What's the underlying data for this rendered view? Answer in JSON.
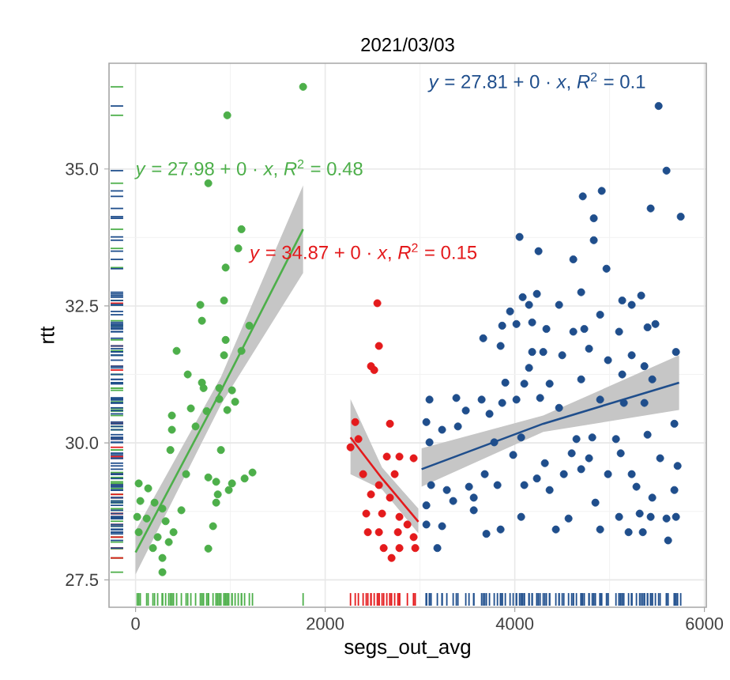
{
  "chart_data": {
    "type": "scatter",
    "title": "2021/03/03",
    "xlabel": "segs_out_avg",
    "ylabel": "rtt",
    "xlim": [
      -280,
      6020
    ],
    "ylim": [
      27.0,
      36.93
    ],
    "xticks": [
      0,
      2000,
      4000,
      6000
    ],
    "yticks": [
      {
        "value": 27.5,
        "label": "27.5"
      },
      {
        "value": 30,
        "label": "30.0"
      },
      {
        "value": 32.5,
        "label": "32.5"
      },
      {
        "value": 35,
        "label": "35.0"
      }
    ],
    "grid": true,
    "series": [
      {
        "marker": "circle",
        "color": "#4daf4a",
        "x": [
          1767,
          967,
          767,
          1117,
          1083,
          950,
          683,
          700,
          933,
          950,
          1200,
          433,
          933,
          1117,
          550,
          700,
          717,
          883,
          1017,
          883,
          583,
          750,
          967,
          1050,
          383,
          383,
          633,
          367,
          900,
          533,
          767,
          850,
          1017,
          1150,
          1233,
          867,
          983,
          850,
          33,
          133,
          50,
          200,
          283,
          17,
          117,
          317,
          483,
          400,
          33,
          233,
          350,
          183,
          283,
          817,
          767,
          283
        ],
        "values": [
          36.5,
          35.98,
          34.74,
          33.9,
          33.55,
          33.2,
          32.52,
          32.23,
          32.6,
          31.88,
          32.14,
          31.68,
          31.6,
          31.68,
          31.25,
          31.1,
          31.0,
          31.0,
          30.96,
          30.8,
          30.63,
          30.58,
          30.6,
          30.75,
          30.5,
          30.24,
          30.3,
          29.87,
          29.87,
          29.43,
          29.37,
          29.29,
          29.26,
          29.35,
          29.46,
          29.06,
          29.14,
          28.91,
          29.26,
          29.17,
          28.94,
          28.91,
          28.8,
          28.65,
          28.62,
          28.57,
          28.77,
          28.37,
          28.37,
          28.28,
          28.19,
          28.08,
          27.9,
          28.48,
          28.07,
          27.64
        ]
      },
      {
        "marker": "circle",
        "color": "#e41a1c",
        "x": [
          2567,
          2483,
          2517,
          2550,
          2317,
          2683,
          2350,
          2267,
          2650,
          2783,
          2933,
          2400,
          2567,
          2733,
          2483,
          2683,
          2600,
          2783,
          2433,
          2567,
          2767,
          2933,
          2450,
          2617,
          2783,
          2700,
          2950,
          2867
        ],
        "values": [
          31.77,
          31.4,
          31.33,
          32.55,
          30.38,
          30.35,
          30.07,
          29.92,
          29.75,
          29.75,
          29.72,
          29.43,
          29.23,
          29.43,
          29.06,
          29.0,
          28.71,
          28.65,
          28.71,
          28.37,
          28.37,
          28.28,
          28.37,
          28.08,
          28.08,
          27.9,
          28.08,
          28.51
        ]
      },
      {
        "marker": "circle",
        "color": "#1f4e8c",
        "x": [
          5517,
          5600,
          5433,
          5750,
          4717,
          4917,
          4833,
          4833,
          4050,
          4250,
          4617,
          4967,
          4083,
          4233,
          4150,
          4467,
          4700,
          4900,
          5133,
          5333,
          5233,
          3950,
          3867,
          4017,
          4183,
          4333,
          4617,
          4733,
          5100,
          5400,
          5483,
          3667,
          3850,
          4183,
          4300,
          4500,
          4783,
          5233,
          5700,
          4983,
          5367,
          4150,
          3900,
          4100,
          4367,
          4700,
          5133,
          5450,
          3100,
          3383,
          3650,
          3867,
          4017,
          4267,
          3483,
          3733,
          4467,
          4900,
          5150,
          5367,
          5683,
          3067,
          3233,
          3400,
          4067,
          4650,
          4817,
          5067,
          5400,
          3100,
          3783,
          4600,
          4783,
          5117,
          5533,
          3983,
          4317,
          3683,
          4233,
          4517,
          4700,
          4983,
          5233,
          5717,
          3117,
          3283,
          3517,
          3817,
          4100,
          4367,
          4850,
          5283,
          5450,
          5683,
          3067,
          3350,
          3567,
          4067,
          4567,
          5100,
          5317,
          5433,
          5600,
          5700,
          3067,
          3233,
          3850,
          3700,
          4433,
          4900,
          5200,
          5350,
          5617,
          3183,
          3567
        ],
        "values": [
          36.15,
          34.97,
          34.28,
          34.13,
          34.5,
          34.6,
          34.1,
          33.7,
          33.76,
          33.5,
          33.35,
          33.18,
          32.66,
          32.72,
          32.52,
          32.52,
          32.75,
          32.34,
          32.6,
          32.69,
          32.52,
          32.4,
          32.14,
          32.17,
          32.2,
          32.08,
          32.03,
          32.08,
          32.03,
          32.11,
          32.17,
          31.91,
          31.77,
          31.66,
          31.66,
          31.6,
          31.72,
          31.6,
          31.66,
          31.51,
          31.4,
          31.37,
          31.1,
          31.08,
          31.08,
          31.16,
          31.25,
          31.16,
          30.79,
          30.82,
          30.79,
          30.73,
          30.79,
          30.82,
          30.59,
          30.53,
          30.64,
          30.79,
          30.73,
          30.73,
          30.35,
          30.38,
          30.24,
          30.3,
          30.1,
          30.07,
          30.1,
          30.07,
          30.15,
          30.01,
          30.01,
          29.81,
          29.72,
          29.81,
          29.72,
          29.78,
          29.63,
          29.43,
          29.35,
          29.43,
          29.52,
          29.43,
          29.43,
          29.58,
          29.23,
          29.14,
          29.2,
          29.23,
          29.23,
          29.14,
          28.91,
          29.2,
          29.0,
          29.14,
          28.86,
          28.94,
          29.0,
          28.65,
          28.62,
          28.65,
          28.71,
          28.65,
          28.62,
          28.65,
          28.51,
          28.48,
          28.42,
          28.34,
          28.42,
          28.42,
          28.37,
          28.37,
          28.22,
          28.08,
          28.77
        ]
      },
      {
        "type": "line",
        "marker": "none",
        "color": "#4daf4a",
        "x": [
          0,
          900,
          1767
        ],
        "values": [
          28.0,
          30.95,
          33.9
        ],
        "lower": [
          27.6,
          30.7,
          33.1
        ],
        "upper": [
          28.4,
          31.2,
          34.7
        ]
      },
      {
        "type": "line",
        "marker": "none",
        "color": "#e41a1c",
        "x": [
          2267,
          2600,
          2983
        ],
        "values": [
          30.1,
          29.35,
          28.56
        ],
        "lower": [
          29.43,
          29.15,
          28.35
        ],
        "upper": [
          30.8,
          29.55,
          28.8
        ]
      },
      {
        "type": "line",
        "marker": "none",
        "color": "#1f4e8c",
        "x": [
          3017,
          4300,
          5733
        ],
        "values": [
          29.52,
          30.35,
          31.1
        ],
        "lower": [
          29.2,
          30.2,
          30.6
        ],
        "upper": [
          29.9,
          30.5,
          31.6
        ]
      }
    ],
    "annotations": [
      "*y* = 27.98 + 0 · *x*,  *R*$^{2}$ = 0.48",
      "*y* = 34.87 + 0 · *x*,  *R*$^{2}$ = 0.15",
      "*y* = 27.81 + 0 · *x*,  *R*$^{2}$ = 0.1"
    ]
  }
}
